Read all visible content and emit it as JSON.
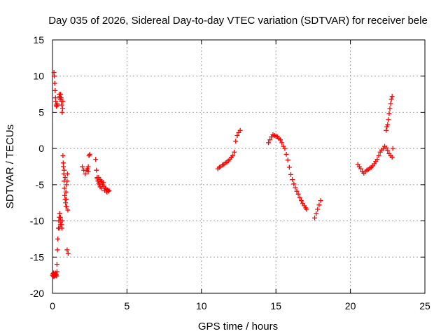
{
  "chart_data": {
    "type": "scatter",
    "title": "Day 035 of 2026, Sidereal Day-to-day VTEC variation (SDTVAR) for receiver bele",
    "xlabel": "GPS time / hours",
    "ylabel": "SDTVAR / TECUs",
    "xlim": [
      0,
      25
    ],
    "ylim": [
      -20,
      15
    ],
    "xticks": [
      0,
      5,
      10,
      15,
      20,
      25
    ],
    "yticks": [
      -20,
      -15,
      -10,
      -5,
      0,
      5,
      10,
      15
    ],
    "grid": true,
    "marker": "+",
    "color": "#ff0000",
    "series": [
      {
        "name": "SDTVAR",
        "x": [
          0.0,
          0.03,
          0.05,
          0.07,
          0.09,
          0.11,
          0.13,
          0.15,
          0.17,
          0.2,
          0.22,
          0.25,
          0.27,
          0.3,
          0.1,
          0.12,
          0.15,
          0.18,
          0.2,
          0.22,
          0.25,
          0.27,
          0.3,
          0.32,
          0.3,
          0.33,
          0.36,
          0.4,
          0.43,
          0.46,
          0.5,
          0.53,
          0.56,
          0.6,
          0.63,
          0.66,
          0.45,
          0.48,
          0.5,
          0.52,
          0.55,
          0.58,
          0.6,
          0.62,
          0.65,
          0.68,
          0.7,
          0.42,
          0.45,
          0.48,
          0.5,
          0.53,
          0.7,
          0.73,
          0.76,
          0.78,
          0.8,
          0.82,
          0.85,
          0.88,
          0.9,
          0.93,
          0.95,
          0.98,
          1.0,
          1.03,
          1.05,
          0.72,
          0.78,
          0.85,
          0.9,
          0.95,
          0.98,
          2.0,
          2.1,
          2.2,
          2.3,
          2.4,
          2.45,
          2.5,
          2.35,
          2.4,
          2.9,
          2.95,
          3.0,
          3.05,
          3.1,
          3.15,
          3.2,
          3.25,
          3.3,
          3.35,
          3.4,
          3.45,
          3.5,
          3.55,
          3.6,
          3.65,
          3.7,
          3.75,
          3.8,
          3.0,
          3.1,
          3.2,
          3.3,
          11.1,
          11.2,
          11.3,
          11.4,
          11.5,
          11.6,
          11.7,
          11.8,
          11.9,
          12.0,
          12.1,
          12.2,
          12.3,
          12.4,
          12.5,
          12.6,
          14.5,
          14.6,
          14.7,
          14.8,
          14.9,
          15.0,
          15.1,
          15.2,
          15.3,
          15.4,
          15.5,
          15.6,
          15.7,
          15.8,
          15.9,
          16.0,
          16.1,
          16.2,
          16.3,
          16.4,
          16.5,
          16.6,
          16.7,
          16.8,
          16.9,
          17.0,
          17.05,
          17.6,
          17.7,
          17.8,
          17.9,
          18.0,
          20.5,
          20.6,
          20.7,
          20.8,
          20.9,
          21.0,
          21.1,
          21.2,
          21.3,
          21.4,
          21.5,
          21.6,
          21.7,
          21.8,
          21.9,
          22.0,
          22.1,
          22.2,
          22.3,
          22.4,
          22.5,
          22.6,
          22.7,
          22.8,
          22.4,
          22.45,
          22.5,
          22.55,
          22.6,
          22.65,
          22.7,
          22.75,
          22.8,
          22.85
        ],
        "y": [
          -17.5,
          -17.3,
          -17.6,
          -17.2,
          -17.7,
          -17.4,
          -17.5,
          -17.6,
          -17.3,
          -17.2,
          -17.5,
          -17.4,
          -17.6,
          -17.0,
          10.5,
          10.0,
          9.0,
          8.0,
          7.0,
          6.5,
          6.0,
          5.8,
          6.2,
          6.0,
          -16.0,
          -14.0,
          -12.5,
          -11.0,
          -10.0,
          -9.5,
          -9.0,
          -9.5,
          -10.0,
          -10.5,
          -11.0,
          -10.0,
          7.5,
          7.2,
          7.0,
          6.8,
          7.5,
          7.0,
          6.5,
          6.0,
          5.0,
          5.5,
          6.5,
          -10.0,
          -11.0,
          -9.0,
          -9.5,
          -10.5,
          -1.0,
          -2.5,
          -3.5,
          -4.5,
          -5.5,
          -6.5,
          -7.0,
          -7.5,
          -8.0,
          -7.0,
          -5.0,
          -4.5,
          -3.5,
          -8.5,
          -14.5,
          -2.0,
          -3.0,
          -4.0,
          -6.0,
          -8.0,
          -14.0,
          -2.5,
          -3.0,
          -3.5,
          -3.0,
          -2.5,
          -1.0,
          -0.8,
          -2.8,
          -3.2,
          -1.5,
          -3.0,
          -4.0,
          -4.5,
          -4.0,
          -5.0,
          -4.3,
          -4.6,
          -5.5,
          -5.0,
          -4.7,
          -5.2,
          -5.8,
          -5.5,
          -5.6,
          -6.0,
          -5.7,
          -5.9,
          -5.8,
          -4.2,
          -4.8,
          -5.3,
          -4.5,
          -2.8,
          -2.6,
          -2.5,
          -2.3,
          -2.2,
          -2.0,
          -1.9,
          -1.7,
          -1.5,
          -1.2,
          -1.0,
          -0.5,
          1.0,
          1.8,
          2.2,
          2.5,
          0.8,
          1.2,
          1.6,
          1.9,
          1.8,
          1.7,
          1.6,
          1.4,
          1.2,
          0.8,
          0.3,
          0.0,
          -0.8,
          -1.6,
          -2.6,
          -3.6,
          -4.3,
          -4.9,
          -5.4,
          -5.9,
          -6.3,
          -6.8,
          -7.2,
          -7.6,
          -7.9,
          -8.2,
          -8.4,
          -9.6,
          -9.0,
          -8.4,
          -7.8,
          -7.2,
          -2.2,
          -2.5,
          -2.8,
          -3.2,
          -3.4,
          -3.2,
          -3.0,
          -2.9,
          -2.7,
          -2.6,
          -2.4,
          -2.1,
          -1.8,
          -1.5,
          -1.0,
          -0.5,
          -0.2,
          0.0,
          0.3,
          0.1,
          -0.3,
          -0.7,
          -1.0,
          -1.2,
          2.5,
          3.0,
          3.3,
          4.0,
          4.8,
          5.5,
          6.2,
          6.8,
          7.2,
          0.0
        ]
      }
    ]
  }
}
